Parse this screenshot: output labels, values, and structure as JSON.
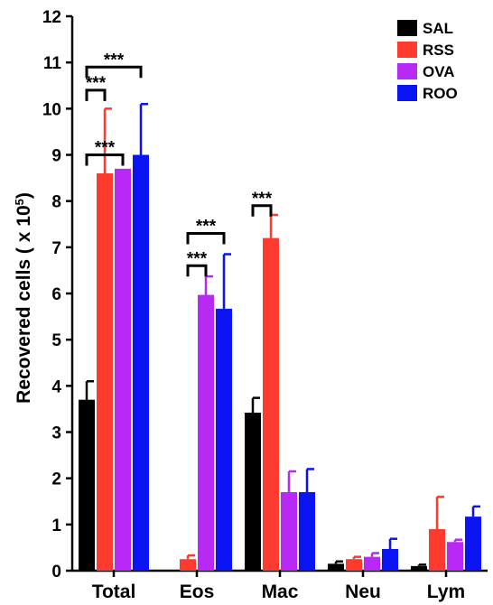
{
  "chart_data": {
    "type": "bar",
    "ylabel_text": "Recovered cells ( x 10",
    "ylabel_exponent": "5",
    "ylabel_close": ")",
    "ylim": [
      0,
      12
    ],
    "yticks": [
      "0",
      "1",
      "2",
      "3",
      "4",
      "5",
      "6",
      "7",
      "8",
      "9",
      "10",
      "11",
      "12"
    ],
    "categories": [
      "Total",
      "Eos",
      "Mac",
      "Neu",
      "Lym"
    ],
    "series": [
      {
        "name": "SAL",
        "color": "#000000",
        "values": [
          3.7,
          0,
          3.42,
          0.15,
          0.1
        ],
        "errors": [
          0.4,
          0,
          0.32,
          0.05,
          0.03
        ]
      },
      {
        "name": "RSS",
        "color": "#ff3b30",
        "values": [
          8.6,
          0.25,
          7.2,
          0.25,
          0.9
        ],
        "errors": [
          1.4,
          0.08,
          0.5,
          0.05,
          0.7
        ]
      },
      {
        "name": "OVA",
        "color": "#b829f5",
        "values": [
          8.7,
          5.97,
          1.7,
          0.3,
          0.62
        ],
        "errors": [
          0,
          0.4,
          0.45,
          0.08,
          0.05
        ]
      },
      {
        "name": "ROO",
        "color": "#0a14f2",
        "values": [
          9.0,
          5.67,
          1.7,
          0.47,
          1.17
        ],
        "errors": [
          1.1,
          1.18,
          0.5,
          0.22,
          0.22
        ]
      }
    ],
    "significance": [
      {
        "category": 0,
        "from": 0,
        "to": 1,
        "level": 10.4,
        "label": "***"
      },
      {
        "category": 0,
        "from": 0,
        "to": 3,
        "level": 10.9,
        "label": "***"
      },
      {
        "category": 0,
        "from": 0,
        "to": 2,
        "level": 9.0,
        "label": "***"
      },
      {
        "category": 1,
        "from": 1,
        "to": 2,
        "level": 6.6,
        "label": "***"
      },
      {
        "category": 1,
        "from": 1,
        "to": 3,
        "level": 7.3,
        "label": "***"
      },
      {
        "category": 2,
        "from": 0,
        "to": 1,
        "level": 7.9,
        "label": "***"
      }
    ],
    "legend_position": "top-right"
  }
}
